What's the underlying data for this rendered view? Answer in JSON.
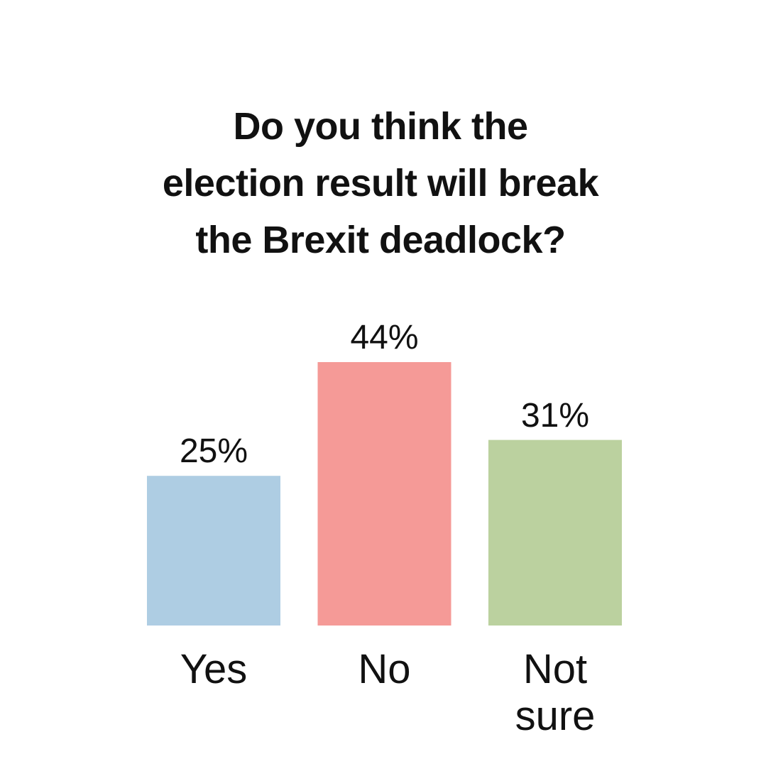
{
  "chart_data": {
    "type": "bar",
    "title": "Do you think the\nelection result will break\nthe Brexit deadlock?",
    "categories": [
      "Yes",
      "No",
      "Not\nsure"
    ],
    "values": [
      25,
      44,
      31
    ],
    "value_labels": [
      "25%",
      "44%",
      "31%"
    ],
    "colors": [
      "#aecde3",
      "#f59a97",
      "#bbd19f"
    ]
  }
}
